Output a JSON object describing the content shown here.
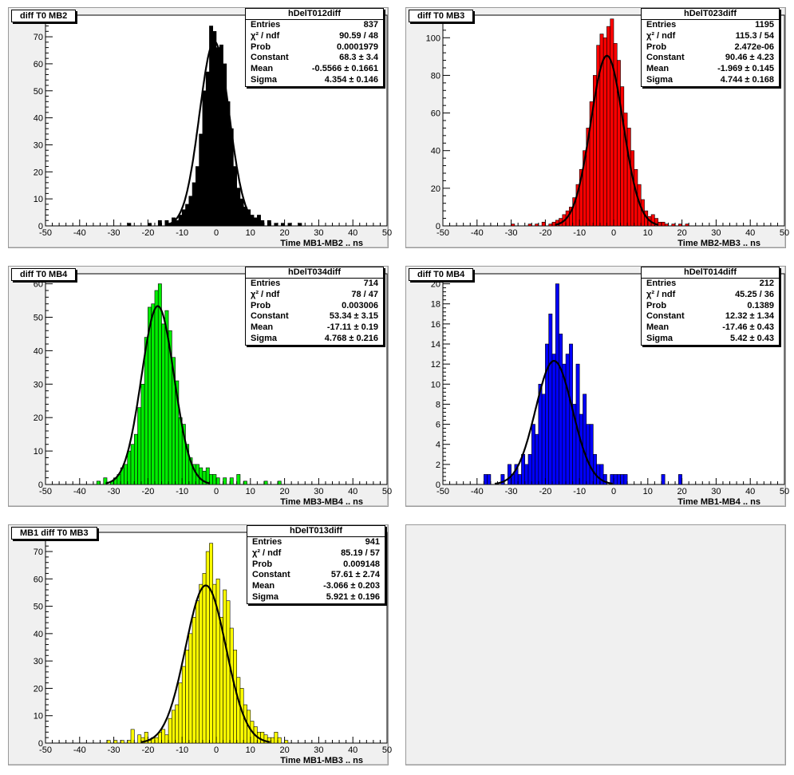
{
  "x_ticks": [
    "-50",
    "-40",
    "-30",
    "-20",
    "-10",
    "0",
    "10",
    "20",
    "30",
    "40",
    "50"
  ],
  "panels": [
    {
      "title": "diff T0 MB2",
      "stats_title": "hDelT012diff",
      "rows": [
        [
          "Entries",
          "837"
        ],
        [
          "χ² / ndf",
          "90.59 / 48"
        ],
        [
          "Prob",
          "0.0001979"
        ],
        [
          "Constant",
          "68.3 ± 3.4"
        ],
        [
          "Mean",
          "-0.5566 ± 0.1661"
        ],
        [
          "Sigma",
          "4.354 ± 0.146"
        ]
      ],
      "xlabel": "Time MB1-MB2  ..  ns",
      "color": "#000000",
      "y_ticks": [
        "0",
        "10",
        "20",
        "30",
        "40",
        "50",
        "60",
        "70"
      ],
      "ymax": 78
    },
    {
      "title": "diff T0 MB3",
      "stats_title": "hDelT023diff",
      "rows": [
        [
          "Entries",
          "1195"
        ],
        [
          "χ² / ndf",
          "115.3 / 54"
        ],
        [
          "Prob",
          "2.472e-06"
        ],
        [
          "Constant",
          "90.46 ± 4.23"
        ],
        [
          "Mean",
          "-1.969 ± 0.145"
        ],
        [
          "Sigma",
          "4.744 ± 0.168"
        ]
      ],
      "xlabel": "Time MB2-MB3  ..  ns",
      "color": "#ff0000",
      "y_ticks": [
        "0",
        "20",
        "40",
        "60",
        "80",
        "100"
      ],
      "ymax": 112
    },
    {
      "title": "diff T0 MB4",
      "stats_title": "hDelT034diff",
      "rows": [
        [
          "Entries",
          "714"
        ],
        [
          "χ² / ndf",
          "78 / 47"
        ],
        [
          "Prob",
          "0.003006"
        ],
        [
          "Constant",
          "53.34 ± 3.15"
        ],
        [
          "Mean",
          "-17.11 ± 0.19"
        ],
        [
          "Sigma",
          "4.768 ± 0.216"
        ]
      ],
      "xlabel": "Time MB3-MB4  ..  ns",
      "color": "#00ee00",
      "y_ticks": [
        "0",
        "10",
        "20",
        "30",
        "40",
        "50",
        "60"
      ],
      "ymax": 63
    },
    {
      "title": "diff T0 MB4",
      "stats_title": "hDelT014diff",
      "rows": [
        [
          "Entries",
          "212"
        ],
        [
          "χ² / ndf",
          "45.25 / 36"
        ],
        [
          "Prob",
          "0.1389"
        ],
        [
          "Constant",
          "12.32 ± 1.34"
        ],
        [
          "Mean",
          "-17.46 ± 0.43"
        ],
        [
          "Sigma",
          "5.42 ± 0.43"
        ]
      ],
      "xlabel": "Time MB1-MB4  ..  ns",
      "color": "#0000ff",
      "y_ticks": [
        "0",
        "2",
        "4",
        "6",
        "8",
        "10",
        "12",
        "14",
        "16",
        "18",
        "20"
      ],
      "ymax": 21
    },
    {
      "title": "MB1 diff T0 MB3",
      "stats_title": "hDelT013diff",
      "rows": [
        [
          "Entries",
          "941"
        ],
        [
          "χ² / ndf",
          "85.19 / 57"
        ],
        [
          "Prob",
          "0.009148"
        ],
        [
          "Constant",
          "57.61 ± 2.74"
        ],
        [
          "Mean",
          "-3.066 ± 0.203"
        ],
        [
          "Sigma",
          "5.921 ± 0.196"
        ]
      ],
      "xlabel": "Time MB1-MB3  ..  ns",
      "color": "#ffff00",
      "y_ticks": [
        "0",
        "10",
        "20",
        "30",
        "40",
        "50",
        "60",
        "70"
      ],
      "ymax": 77
    }
  ],
  "chart_data": [
    {
      "type": "bar",
      "title": "diff T0 MB2",
      "xlabel": "Time MB1-MB2  ..  ns",
      "xlim": [
        -50,
        50
      ],
      "ylim": [
        0,
        78
      ],
      "bin_width": 1,
      "x": [
        -26,
        -20,
        -17,
        -15,
        -14,
        -13,
        -12,
        -11,
        -10,
        -9,
        -8,
        -7,
        -6,
        -5,
        -4,
        -3,
        -2,
        -1,
        0,
        1,
        2,
        3,
        4,
        5,
        6,
        7,
        8,
        9,
        10,
        11,
        12,
        13,
        15,
        17,
        19,
        21,
        24
      ],
      "values": [
        1,
        1,
        2,
        2,
        1,
        3,
        2,
        4,
        6,
        8,
        11,
        16,
        22,
        34,
        50,
        57,
        74,
        72,
        66,
        67,
        60,
        46,
        36,
        22,
        14,
        10,
        7,
        6,
        4,
        3,
        4,
        2,
        2,
        1,
        1,
        1,
        1
      ],
      "fit": {
        "constant": 68.3,
        "mean": -0.5566,
        "sigma": 4.354
      }
    },
    {
      "type": "bar",
      "title": "diff T0 MB3",
      "xlabel": "Time MB2-MB3  ..  ns",
      "xlim": [
        -50,
        50
      ],
      "ylim": [
        0,
        112
      ],
      "bin_width": 1,
      "x": [
        -30,
        -25,
        -23,
        -21,
        -19,
        -18,
        -17,
        -16,
        -15,
        -14,
        -13,
        -12,
        -11,
        -10,
        -9,
        -8,
        -7,
        -6,
        -5,
        -4,
        -3,
        -2,
        -1,
        0,
        1,
        2,
        3,
        4,
        5,
        6,
        7,
        8,
        9,
        10,
        11,
        12,
        13,
        14,
        15,
        17,
        19,
        21
      ],
      "values": [
        1,
        1,
        1,
        2,
        1,
        2,
        3,
        4,
        6,
        8,
        10,
        15,
        22,
        30,
        40,
        52,
        66,
        80,
        96,
        102,
        100,
        106,
        110,
        97,
        88,
        74,
        60,
        52,
        40,
        30,
        22,
        14,
        8,
        5,
        6,
        4,
        2,
        2,
        1,
        1,
        1,
        1
      ],
      "fit": {
        "constant": 90.46,
        "mean": -1.969,
        "sigma": 4.744
      }
    },
    {
      "type": "bar",
      "title": "diff T0 MB4",
      "xlabel": "Time MB3-MB4  ..  ns",
      "xlim": [
        -50,
        50
      ],
      "ylim": [
        0,
        63
      ],
      "bin_width": 1,
      "x": [
        -35,
        -33,
        -31,
        -30,
        -29,
        -28,
        -27,
        -26,
        -25,
        -24,
        -23,
        -22,
        -21,
        -20,
        -19,
        -18,
        -17,
        -16,
        -15,
        -14,
        -13,
        -12,
        -11,
        -10,
        -9,
        -8,
        -7,
        -6,
        -5,
        -4,
        -3,
        -2,
        -1,
        0,
        2,
        4,
        6,
        8,
        14,
        18
      ],
      "values": [
        1,
        2,
        1,
        2,
        3,
        5,
        6,
        10,
        12,
        15,
        23,
        30,
        44,
        53,
        54,
        58,
        60,
        48,
        52,
        46,
        38,
        31,
        20,
        18,
        12,
        8,
        6,
        6,
        5,
        4,
        5,
        3,
        3,
        2,
        2,
        2,
        3,
        1,
        1,
        1
      ],
      "fit": {
        "constant": 53.34,
        "mean": -17.11,
        "sigma": 4.768
      }
    },
    {
      "type": "bar",
      "title": "diff T0 MB4",
      "xlabel": "Time MB1-MB4  ..  ns",
      "xlim": [
        -50,
        50
      ],
      "ylim": [
        0,
        21
      ],
      "bin_width": 1,
      "x": [
        -38,
        -37,
        -33,
        -31,
        -30,
        -29,
        -28,
        -27,
        -26,
        -25,
        -24,
        -23,
        -22,
        -21,
        -20,
        -19,
        -18,
        -17,
        -16,
        -15,
        -14,
        -13,
        -12,
        -11,
        -10,
        -9,
        -8,
        -7,
        -6,
        -5,
        -4,
        -3,
        -1,
        0,
        1,
        2,
        3,
        14,
        19
      ],
      "values": [
        1,
        1,
        1,
        2,
        1,
        2,
        1,
        3,
        2,
        3,
        6,
        5,
        10,
        9,
        14,
        17,
        13,
        20,
        15,
        12,
        13,
        14,
        8,
        12,
        7,
        9,
        6,
        6,
        3,
        2,
        2,
        1,
        1,
        1,
        1,
        1,
        1,
        1,
        1
      ],
      "fit": {
        "constant": 12.32,
        "mean": -17.46,
        "sigma": 5.42
      }
    },
    {
      "type": "bar",
      "title": "MB1 diff T0 MB3",
      "xlabel": "Time MB1-MB3  ..  ns",
      "xlim": [
        -50,
        50
      ],
      "ylim": [
        0,
        77
      ],
      "bin_width": 1,
      "x": [
        -32,
        -30,
        -28,
        -26,
        -25,
        -23,
        -22,
        -21,
        -20,
        -19,
        -18,
        -17,
        -16,
        -15,
        -14,
        -13,
        -12,
        -11,
        -10,
        -9,
        -8,
        -7,
        -6,
        -5,
        -4,
        -3,
        -2,
        -1,
        0,
        1,
        2,
        3,
        4,
        5,
        6,
        7,
        8,
        9,
        10,
        11,
        12,
        13,
        14,
        15,
        16,
        17,
        18,
        20
      ],
      "values": [
        1,
        1,
        1,
        1,
        5,
        3,
        2,
        4,
        1,
        2,
        2,
        4,
        5,
        3,
        9,
        12,
        14,
        22,
        28,
        34,
        40,
        46,
        52,
        58,
        62,
        70,
        73,
        58,
        60,
        46,
        56,
        52,
        42,
        34,
        24,
        20,
        14,
        12,
        8,
        6,
        4,
        4,
        3,
        2,
        2,
        4,
        2,
        1
      ],
      "fit": {
        "constant": 57.61,
        "mean": -3.066,
        "sigma": 5.921
      }
    }
  ]
}
